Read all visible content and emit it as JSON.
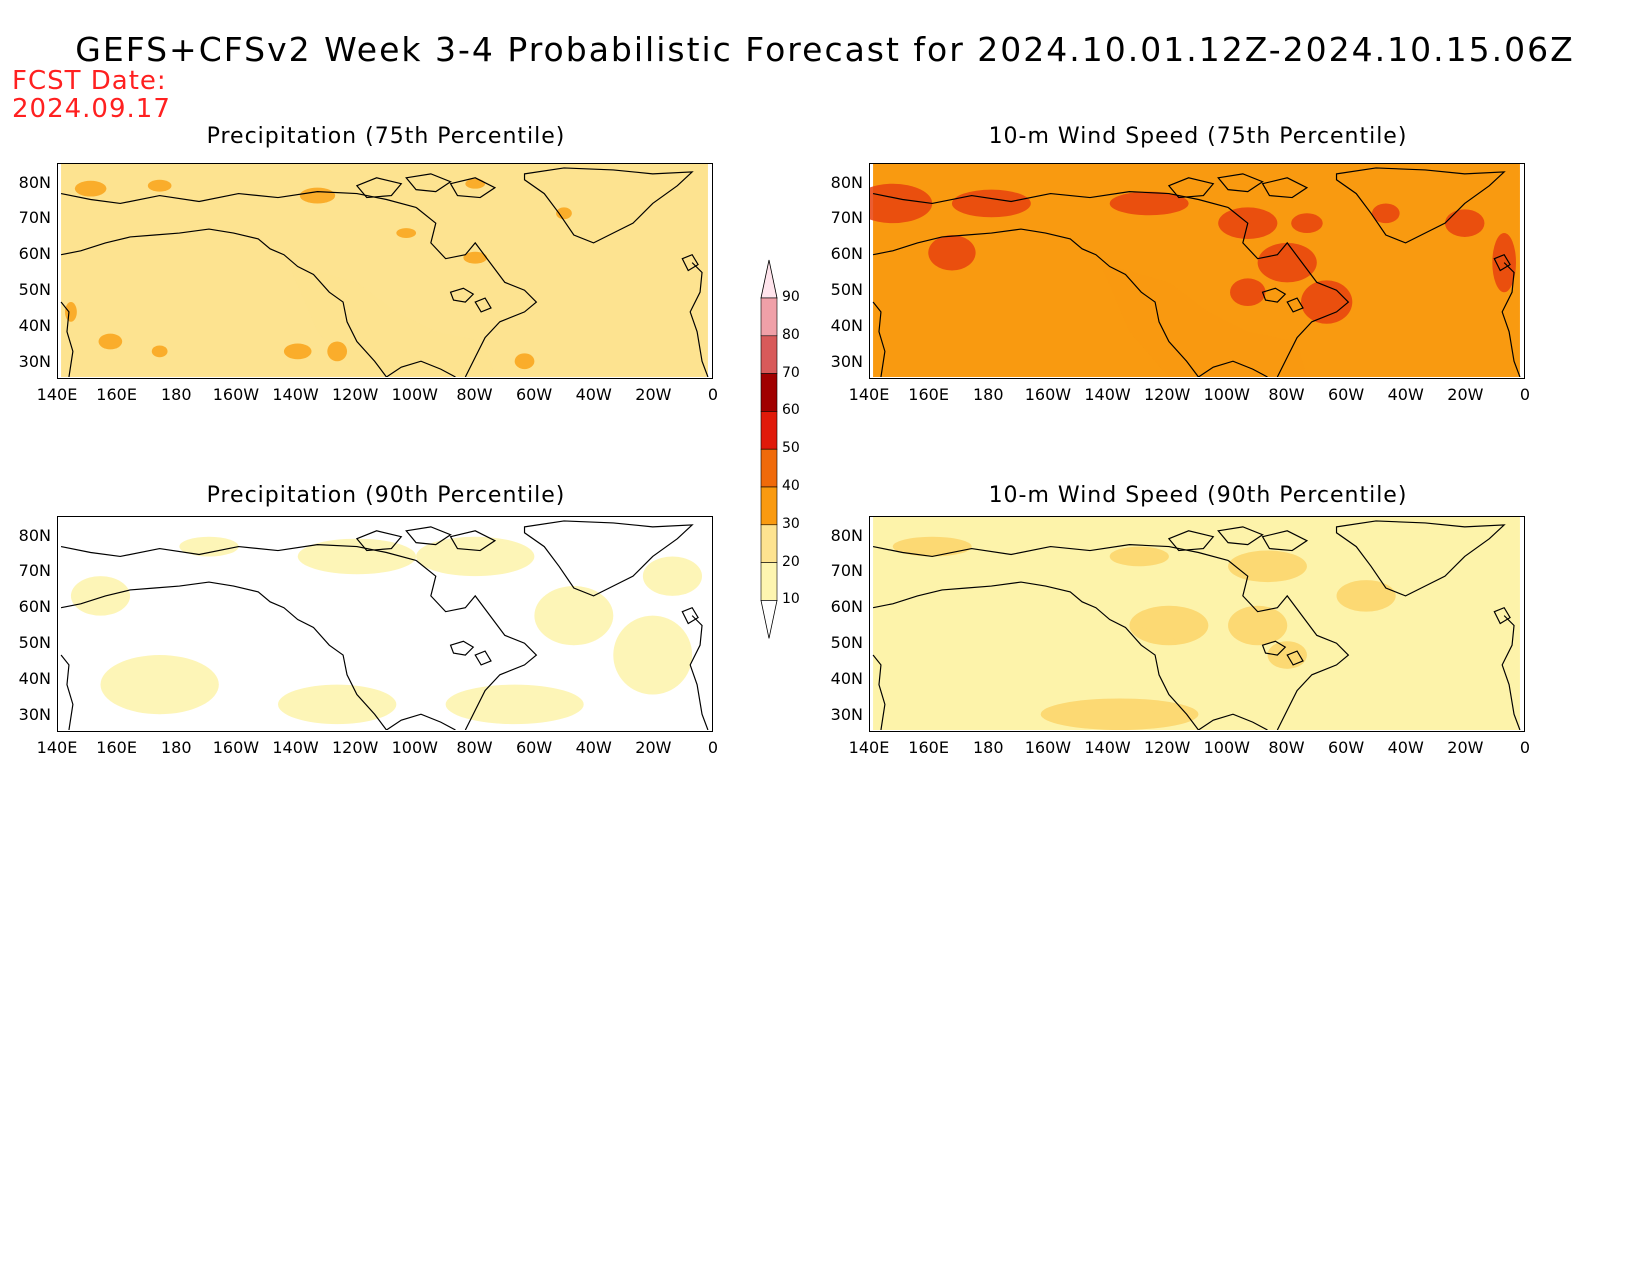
{
  "header": {
    "title": "GEFS+CFSv2 Week 3-4 Probabilistic Forecast for 2024.10.01.12Z-2024.10.15.06Z",
    "fcst_label": "FCST Date:",
    "fcst_date": "2024.09.17"
  },
  "axes": {
    "lat_labels": [
      "80N",
      "70N",
      "60N",
      "50N",
      "40N",
      "30N"
    ],
    "lon_labels": [
      "140E",
      "160E",
      "180",
      "160W",
      "140W",
      "120W",
      "100W",
      "80W",
      "60W",
      "40W",
      "20W",
      "0"
    ]
  },
  "panels": [
    {
      "id": "precip75",
      "title": "Precipitation (75th Percentile)",
      "base_color": "#fde390",
      "patch_color": "#f9a31a"
    },
    {
      "id": "wind75",
      "title": "10-m Wind Speed (75th Percentile)",
      "base_color": "#f99a10",
      "patch_color": "#e8420e"
    },
    {
      "id": "precip90",
      "title": "Precipitation (90th Percentile)",
      "base_color": "#ffffff",
      "patch_color": "#fdf3aa"
    },
    {
      "id": "wind90",
      "title": "10-m Wind Speed (90th Percentile)",
      "base_color": "#fdf3aa",
      "patch_color": "#fbd36a"
    }
  ],
  "colorbar": {
    "levels": [
      "10",
      "20",
      "30",
      "40",
      "50",
      "60",
      "70",
      "80",
      "90"
    ],
    "colors": [
      "#ffffff",
      "#fdf5b0",
      "#fde390",
      "#f99a10",
      "#f06a0a",
      "#e01a0a",
      "#a00000",
      "#d85a5a",
      "#f0a0a8",
      "#ffe4ec"
    ]
  }
}
